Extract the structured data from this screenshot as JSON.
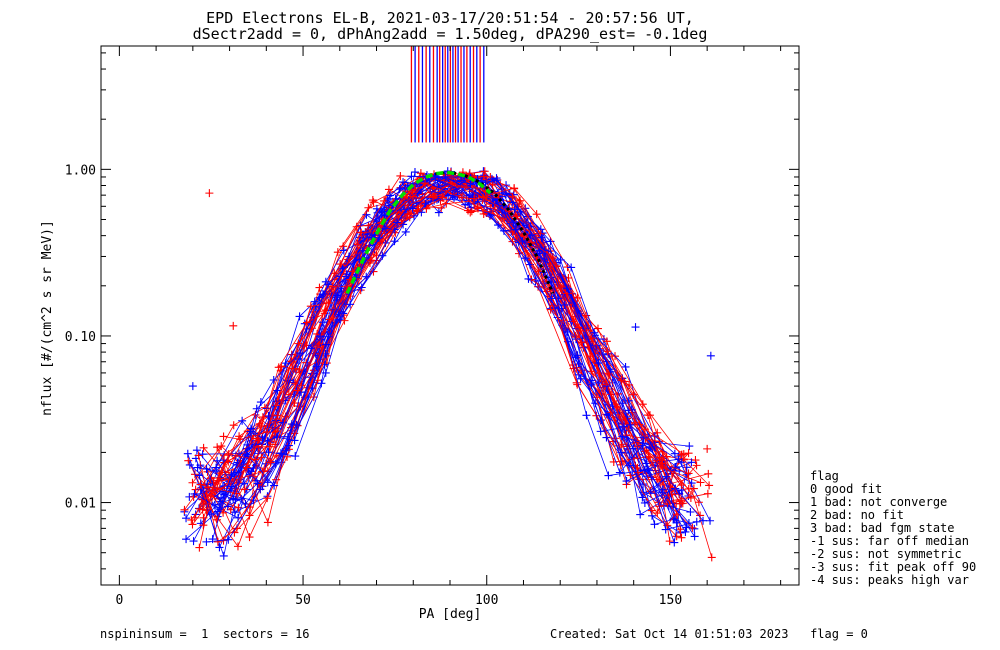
{
  "chart_data": {
    "type": "scatter",
    "title_line1": "EPD Electrons EL-B, 2021-03-17/20:51:54 - 20:57:56 UT,",
    "title_line2": "dSectr2add = 0, dPhAng2add = 1.50deg, dPA290_est=  -0.1deg",
    "xlabel": "PA [deg]",
    "ylabel": "nflux [#/(cm^2 s sr MeV)]",
    "xlim": [
      -5,
      185
    ],
    "ylim": [
      0.0032,
      5.5
    ],
    "ylog": true,
    "x_ticks": [
      0,
      50,
      100,
      150
    ],
    "x_tick_labels": [
      "0",
      "50",
      "100",
      "150"
    ],
    "y_ticks": [
      0.01,
      0.1,
      1.0
    ],
    "y_tick_labels": [
      "0.01",
      "0.10",
      "1.00"
    ],
    "series_colors": {
      "red": "#ff0000",
      "blue": "#0000ff",
      "fit_green": "#00e000",
      "fit_black": "#000000"
    },
    "model": {
      "peak": 0.95,
      "center": 90,
      "sigma": 17
    },
    "fit_green_x": [
      62,
      65,
      68,
      71,
      74,
      77,
      80,
      83,
      86,
      89,
      92,
      95,
      98,
      101
    ],
    "fit_green_y": [
      0.18,
      0.25,
      0.34,
      0.45,
      0.58,
      0.7,
      0.81,
      0.89,
      0.94,
      0.96,
      0.94,
      0.9,
      0.82,
      0.72
    ],
    "fit_black_x": [
      86,
      90,
      94,
      98,
      102,
      106,
      110,
      114,
      118
    ],
    "fit_black_y": [
      0.94,
      0.96,
      0.92,
      0.84,
      0.72,
      0.57,
      0.42,
      0.29,
      0.18
    ],
    "spikes_x": [
      79.5,
      80.5,
      81.5,
      82.5,
      83.5,
      84.5,
      85.5,
      86.5,
      87.2,
      88,
      88.7,
      89.4,
      90.1,
      90.8,
      91.5,
      92.2,
      93,
      93.8,
      94.6,
      95.5,
      96.4,
      97.3,
      98.2,
      99.2
    ],
    "outlier_points": [
      {
        "x": 24.5,
        "y": 0.72,
        "color": "red"
      },
      {
        "x": 31,
        "y": 0.115,
        "color": "red"
      },
      {
        "x": 20,
        "y": 0.05,
        "color": "blue"
      },
      {
        "x": 161,
        "y": 0.076,
        "color": "blue"
      },
      {
        "x": 160,
        "y": 0.021,
        "color": "red"
      },
      {
        "x": 140.5,
        "y": 0.113,
        "color": "blue"
      }
    ]
  },
  "legend": {
    "title": "flag",
    "items": [
      "0 good fit",
      "1 bad: not converge",
      "2 bad: no fit",
      "3 bad: bad fgm state",
      "-1 sus: far off median",
      "-2 sus: not symmetric",
      "-3 sus: fit peak off 90",
      "-4 sus: peaks high var"
    ]
  },
  "footer": {
    "left": "nspininsum =  1  sectors = 16",
    "right": "Created: Sat Oct 14 01:51:03 2023   flag = 0"
  }
}
